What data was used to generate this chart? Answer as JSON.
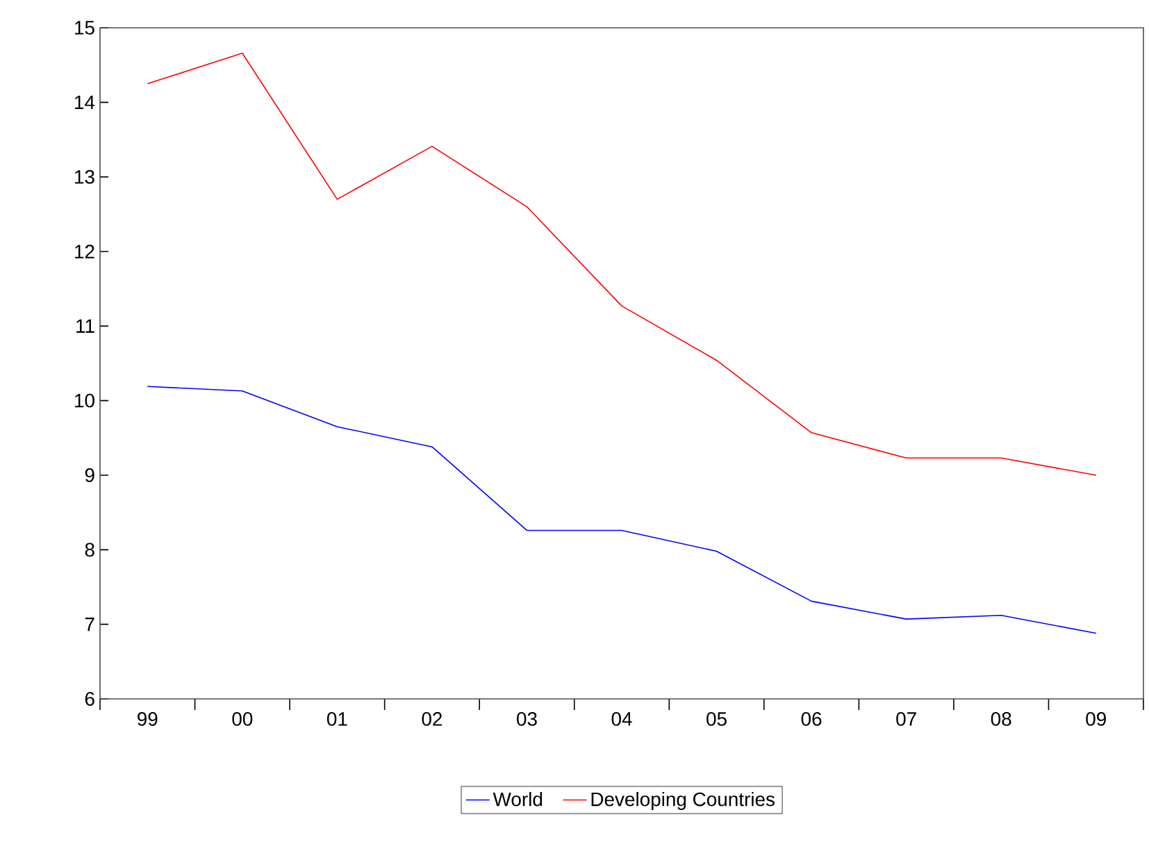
{
  "chart_data": {
    "type": "line",
    "categories": [
      "99",
      "00",
      "01",
      "02",
      "03",
      "04",
      "05",
      "06",
      "07",
      "08",
      "09"
    ],
    "series": [
      {
        "name": "World",
        "color": "#0000ff",
        "values": [
          10.19,
          10.13,
          9.65,
          9.38,
          8.26,
          8.26,
          7.98,
          7.31,
          7.07,
          7.12,
          6.88
        ]
      },
      {
        "name": "Developing Countries",
        "color": "#ff0000",
        "values": [
          14.25,
          14.66,
          12.7,
          13.41,
          12.6,
          11.27,
          10.54,
          9.57,
          9.23,
          9.23,
          9.0
        ]
      }
    ],
    "ylim": [
      6,
      15
    ],
    "yticks": [
      6,
      7,
      8,
      9,
      10,
      11,
      12,
      13,
      14,
      15
    ],
    "grid": false,
    "legend": "bottom",
    "marker": "none",
    "line_style": "solid"
  }
}
